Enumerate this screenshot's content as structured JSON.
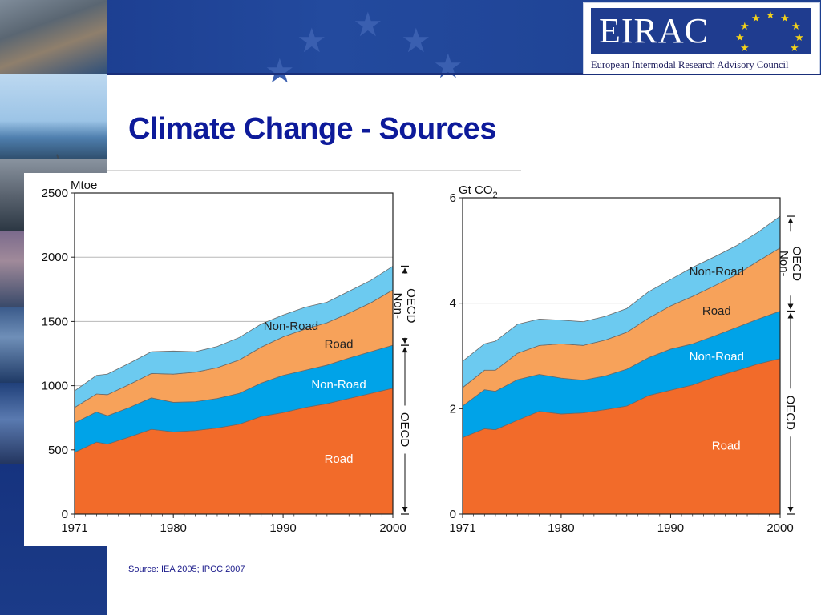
{
  "slide": {
    "title": "Climate Change - Sources",
    "logo": {
      "name": "EIRAC",
      "subtitle": "European Intermodal Research Advisory Council"
    },
    "source": "Source: IEA 2005; IPCC 2007"
  },
  "colors": {
    "road": "#f26b2a",
    "oecd_non_road": "#00a3e8",
    "non_oecd_road": "#f7a25a",
    "non_oecd_non_road": "#6ccaf0",
    "title": "#0d1a9a",
    "brand_blue": "#1f3c8f"
  },
  "chart_data": [
    {
      "type": "area",
      "stacked": true,
      "unit_label": "Mtoe",
      "x": [
        1971,
        1973,
        1974,
        1976,
        1978,
        1980,
        1982,
        1984,
        1986,
        1988,
        1990,
        1992,
        1994,
        1996,
        1998,
        2000
      ],
      "xticks": [
        1971,
        1980,
        1990,
        2000
      ],
      "yticks": [
        0,
        500,
        1000,
        1500,
        2000,
        2500
      ],
      "ylim": [
        0,
        2500
      ],
      "grid": true,
      "series": [
        {
          "name": "Road",
          "group": "OECD",
          "values": [
            480,
            560,
            545,
            600,
            660,
            640,
            650,
            670,
            700,
            760,
            790,
            830,
            860,
            900,
            940,
            980
          ]
        },
        {
          "name": "Non-Road",
          "group": "OECD",
          "values": [
            230,
            235,
            220,
            230,
            245,
            230,
            225,
            230,
            240,
            260,
            290,
            290,
            300,
            315,
            325,
            335
          ]
        },
        {
          "name": "Road",
          "group": "Non-OECD",
          "values": [
            120,
            140,
            165,
            180,
            190,
            220,
            230,
            240,
            260,
            280,
            300,
            320,
            330,
            350,
            380,
            430
          ]
        },
        {
          "name": "Non-Road",
          "group": "Non-OECD",
          "values": [
            130,
            145,
            160,
            165,
            170,
            180,
            160,
            165,
            175,
            180,
            170,
            170,
            160,
            170,
            175,
            185
          ]
        }
      ],
      "area_labels": [
        "Road",
        "Non-Road",
        "Road",
        "Non-Road"
      ],
      "bracket_labels": [
        "OECD",
        "Non-\nOECD"
      ]
    },
    {
      "type": "area",
      "stacked": true,
      "unit_label": "Gt CO2",
      "x": [
        1971,
        1973,
        1974,
        1976,
        1978,
        1980,
        1982,
        1984,
        1986,
        1988,
        1990,
        1992,
        1994,
        1996,
        1998,
        2000
      ],
      "xticks": [
        1971,
        1980,
        1990,
        2000
      ],
      "yticks": [
        0,
        2,
        4,
        6
      ],
      "ylim": [
        0,
        6
      ],
      "grid": true,
      "series": [
        {
          "name": "Road",
          "group": "OECD",
          "values": [
            1.45,
            1.62,
            1.6,
            1.78,
            1.95,
            1.9,
            1.92,
            1.98,
            2.05,
            2.25,
            2.35,
            2.45,
            2.6,
            2.72,
            2.85,
            2.95
          ]
        },
        {
          "name": "Non-Road",
          "group": "OECD",
          "values": [
            0.6,
            0.74,
            0.73,
            0.77,
            0.7,
            0.68,
            0.62,
            0.64,
            0.7,
            0.72,
            0.78,
            0.78,
            0.78,
            0.82,
            0.85,
            0.9
          ]
        },
        {
          "name": "Road",
          "group": "Non-OECD",
          "values": [
            0.35,
            0.37,
            0.4,
            0.5,
            0.55,
            0.65,
            0.66,
            0.68,
            0.7,
            0.75,
            0.82,
            0.9,
            0.95,
            1.0,
            1.1,
            1.2
          ]
        },
        {
          "name": "Non-Road",
          "group": "Non-OECD",
          "values": [
            0.5,
            0.5,
            0.55,
            0.55,
            0.5,
            0.45,
            0.45,
            0.45,
            0.45,
            0.5,
            0.5,
            0.55,
            0.55,
            0.55,
            0.55,
            0.6
          ]
        }
      ],
      "area_labels": [
        "Road",
        "Non-Road",
        "Road",
        "Non-Road"
      ],
      "bracket_labels": [
        "OECD",
        "Non-\nOECD"
      ]
    }
  ]
}
